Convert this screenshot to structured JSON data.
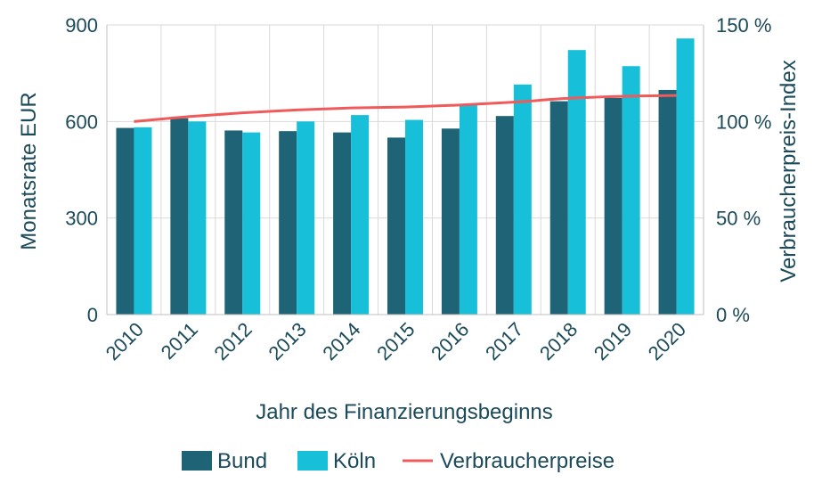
{
  "chart_data": {
    "type": "bar",
    "categories": [
      "2010",
      "2011",
      "2012",
      "2013",
      "2014",
      "2015",
      "2016",
      "2017",
      "2018",
      "2019",
      "2020"
    ],
    "series": [
      {
        "name": "Bund",
        "type": "bar",
        "axis": "left",
        "color": "#1e6376",
        "values": [
          580,
          610,
          572,
          570,
          566,
          550,
          578,
          617,
          663,
          673,
          698
        ]
      },
      {
        "name": "Köln",
        "type": "bar",
        "axis": "left",
        "color": "#17c0d8",
        "values": [
          582,
          600,
          566,
          600,
          620,
          605,
          655,
          715,
          822,
          772,
          858
        ]
      },
      {
        "name": "Verbraucherpreise",
        "type": "line",
        "axis": "right",
        "color": "#f05a5a",
        "values": [
          100,
          102.5,
          104.5,
          106,
          107,
          107.5,
          108.5,
          110,
          112,
          113,
          113.5
        ]
      }
    ],
    "xlabel": "Jahr des Finanzierungsbeginns",
    "ylabel": "Monatsrate EUR",
    "y2label": "Verbraucherpreis-Index",
    "ylim": [
      0,
      900
    ],
    "y2lim": [
      0,
      150
    ],
    "yticks": [
      "0",
      "300",
      "600",
      "900"
    ],
    "y2ticks": [
      "0 %",
      "50 %",
      "100 %",
      "150 %"
    ],
    "grid": true,
    "legend_position": "bottom"
  }
}
